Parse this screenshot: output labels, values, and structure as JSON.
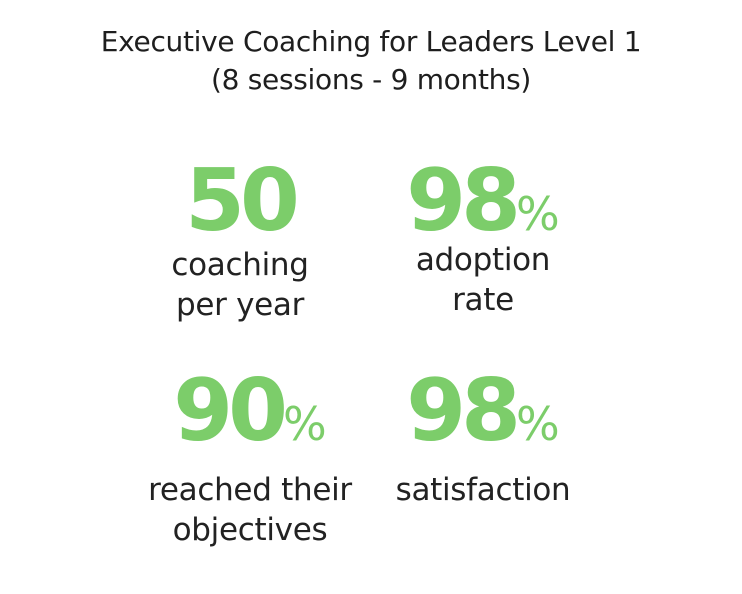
{
  "header": {
    "title_lines": [
      "Executive Coaching for Leaders Level 1",
      "(8 sessions - 9 months)"
    ]
  },
  "stats": [
    {
      "value": "50",
      "label_lines": [
        "coaching",
        "per year"
      ]
    },
    {
      "value": "98",
      "unit": "%",
      "label_lines": [
        "adoption",
        "rate"
      ]
    },
    {
      "value": "90",
      "unit": "%",
      "label_lines": [
        "reached their",
        "objectives"
      ]
    },
    {
      "value": "98",
      "unit": "%",
      "label_lines": [
        "satisfaction"
      ]
    }
  ]
}
